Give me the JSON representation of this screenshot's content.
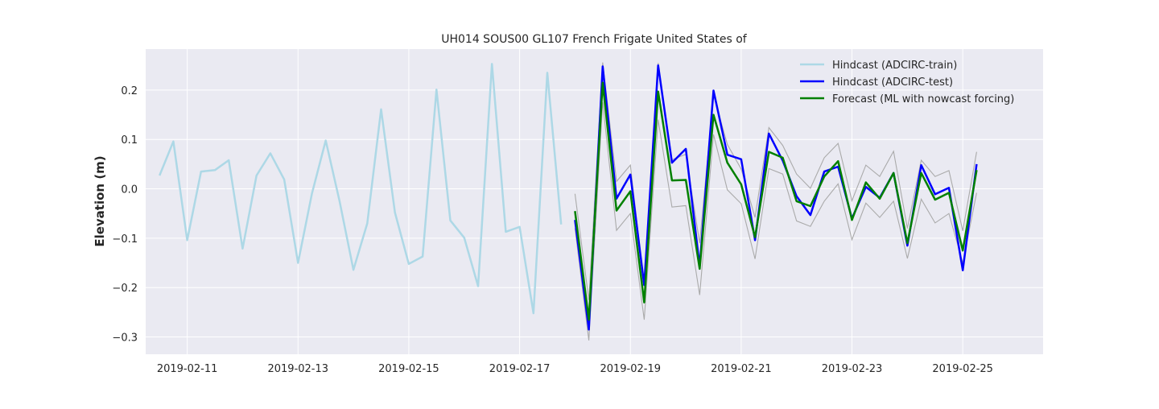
{
  "chart_data": {
    "type": "line",
    "title": "UH014 SOUS00 GL107 French Frigate United States of",
    "xlabel": "",
    "ylabel": "Elevation (m)",
    "x_ticks": [
      "2019-02-11",
      "2019-02-13",
      "2019-02-15",
      "2019-02-17",
      "2019-02-19",
      "2019-02-21",
      "2019-02-23",
      "2019-02-25"
    ],
    "x_tick_days": [
      11,
      13,
      15,
      17,
      19,
      21,
      23,
      25
    ],
    "y_ticks": [
      "0.2",
      "0.1",
      "0.0",
      "−0.1",
      "−0.2",
      "−0.3"
    ],
    "y_tick_values": [
      0.2,
      0.1,
      0.0,
      -0.1,
      -0.2,
      -0.3
    ],
    "xlim_days": [
      10.25,
      26.45
    ],
    "ylim": [
      -0.335,
      0.283
    ],
    "grid": true,
    "legend_position": "top-right",
    "series": [
      {
        "name": "Hindcast (ADCIRC-train)",
        "color": "#add8e6",
        "x_days": [
          10.5,
          10.75,
          11.0,
          11.25,
          11.5,
          11.75,
          12.0,
          12.25,
          12.5,
          12.75,
          13.0,
          13.25,
          13.5,
          13.75,
          14.0,
          14.25,
          14.5,
          14.75,
          15.0,
          15.25,
          15.5,
          15.75,
          16.0,
          16.25,
          16.5,
          16.75,
          17.0,
          17.25,
          17.5,
          17.75
        ],
        "y": [
          0.027,
          0.096,
          -0.104,
          0.035,
          0.038,
          0.058,
          -0.121,
          0.027,
          0.072,
          0.019,
          -0.15,
          -0.01,
          0.098,
          -0.025,
          -0.164,
          -0.07,
          0.161,
          -0.048,
          -0.152,
          -0.137,
          0.201,
          -0.064,
          -0.099,
          -0.197,
          0.253,
          -0.087,
          -0.077,
          -0.252,
          0.235,
          -0.072
        ]
      },
      {
        "name": "Hindcast (ADCIRC-test)",
        "color": "#0000ff",
        "x_days": [
          18.0,
          18.25,
          18.5,
          18.75,
          19.0,
          19.25,
          19.5,
          19.75,
          20.0,
          20.25,
          20.5,
          20.75,
          21.0,
          21.25,
          21.5,
          21.75,
          22.0,
          22.25,
          22.5,
          22.75,
          23.0,
          23.25,
          23.5,
          23.75,
          24.0,
          24.25,
          24.5,
          24.75,
          25.0,
          25.25
        ],
        "y": [
          -0.063,
          -0.285,
          0.248,
          -0.02,
          0.029,
          -0.195,
          0.25,
          0.053,
          0.081,
          -0.157,
          0.199,
          0.069,
          0.06,
          -0.104,
          0.112,
          0.057,
          -0.015,
          -0.053,
          0.035,
          0.045,
          -0.06,
          0.004,
          -0.018,
          0.032,
          -0.115,
          0.048,
          -0.011,
          0.002,
          -0.165,
          0.05
        ]
      },
      {
        "name": "Forecast (ML with nowcast forcing)",
        "color": "#008000",
        "x_days": [
          18.0,
          18.25,
          18.5,
          18.75,
          19.0,
          19.25,
          19.5,
          19.75,
          20.0,
          20.25,
          20.5,
          20.75,
          21.0,
          21.25,
          21.5,
          21.75,
          22.0,
          22.25,
          22.5,
          22.75,
          23.0,
          23.25,
          23.5,
          23.75,
          24.0,
          24.25,
          24.5,
          24.75,
          25.0,
          25.25
        ],
        "y": [
          -0.045,
          -0.265,
          0.215,
          -0.044,
          -0.005,
          -0.23,
          0.197,
          0.017,
          0.018,
          -0.162,
          0.15,
          0.053,
          0.009,
          -0.098,
          0.075,
          0.063,
          -0.025,
          -0.035,
          0.025,
          0.056,
          -0.063,
          0.013,
          -0.02,
          0.032,
          -0.11,
          0.032,
          -0.022,
          -0.008,
          -0.125,
          0.038
        ]
      }
    ],
    "band": {
      "color": "#aaaaaa",
      "x_days": [
        18.0,
        18.25,
        18.5,
        18.75,
        19.0,
        19.25,
        19.5,
        19.75,
        20.0,
        20.25,
        20.5,
        20.75,
        21.0,
        21.25,
        21.5,
        21.75,
        22.0,
        22.25,
        22.5,
        22.75,
        23.0,
        23.25,
        23.5,
        23.75,
        24.0,
        24.25,
        24.5,
        24.75,
        25.0,
        25.25
      ],
      "upper": [
        -0.01,
        -0.225,
        0.256,
        0.015,
        0.048,
        -0.195,
        0.255,
        0.059,
        0.07,
        -0.11,
        0.19,
        0.09,
        0.04,
        -0.058,
        0.124,
        0.088,
        0.03,
        0.001,
        0.063,
        0.092,
        -0.024,
        0.048,
        0.025,
        0.076,
        -0.08,
        0.058,
        0.025,
        0.037,
        -0.085,
        0.075
      ],
      "lower": [
        -0.08,
        -0.307,
        0.175,
        -0.084,
        -0.05,
        -0.265,
        0.14,
        -0.037,
        -0.034,
        -0.215,
        0.11,
        -0.002,
        -0.03,
        -0.142,
        0.041,
        0.03,
        -0.065,
        -0.076,
        -0.025,
        0.01,
        -0.103,
        -0.029,
        -0.058,
        -0.025,
        -0.141,
        -0.021,
        -0.069,
        -0.05,
        -0.15,
        -0.008
      ]
    }
  }
}
